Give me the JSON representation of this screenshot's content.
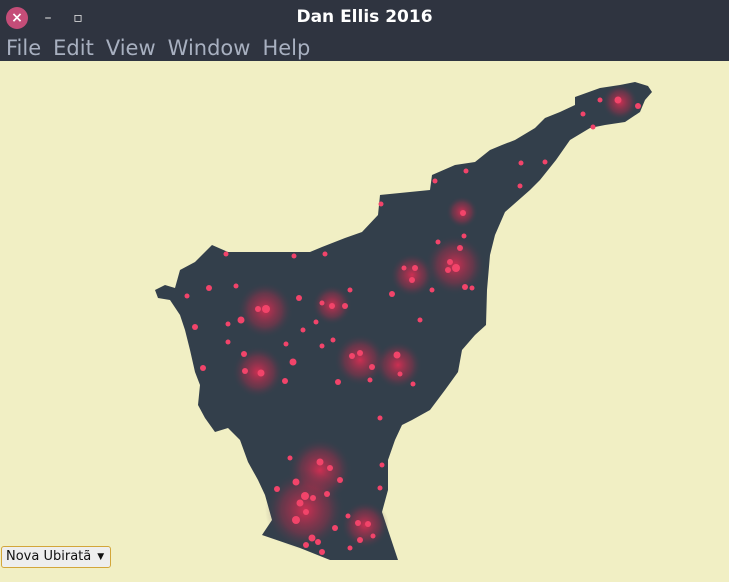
{
  "window": {
    "title": "Dan Ellis 2016",
    "close_icon": "×",
    "minimize_icon": "–",
    "maximize_icon": "▫"
  },
  "menu": [
    "File",
    "Edit",
    "View",
    "Window",
    "Help"
  ],
  "dropdown": {
    "selected": "Nova Ubiratã",
    "arrow": "▼"
  },
  "map": {
    "fill_color": "#333f4b",
    "point_color": "#f2446a",
    "background": "#f1efc4"
  }
}
